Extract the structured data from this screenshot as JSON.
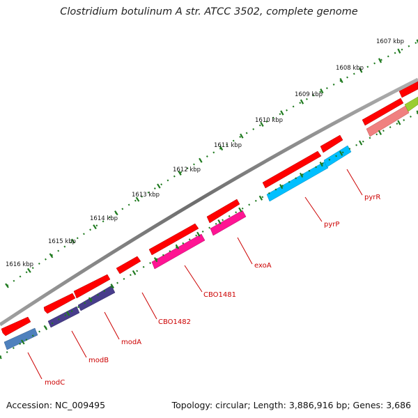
{
  "title": "Clostridium botulinum A str. ATCC 3502, complete genome",
  "footer": {
    "accession": "Accession: NC_009495",
    "summary": "Topology: circular; Length: 3,886,916 bp; Genes: 3,686"
  },
  "ticks": [
    {
      "label": "1607 kbp",
      "kbp": 1607
    },
    {
      "label": "1608 kbp",
      "kbp": 1608
    },
    {
      "label": "1609 kbp",
      "kbp": 1609
    },
    {
      "label": "1610 kbp",
      "kbp": 1610
    },
    {
      "label": "1611 kbp",
      "kbp": 1611
    },
    {
      "label": "1612 kbp",
      "kbp": 1612
    },
    {
      "label": "1613 kbp",
      "kbp": 1613
    },
    {
      "label": "1614 kbp",
      "kbp": 1614
    },
    {
      "label": "1615 kbp",
      "kbp": 1615
    },
    {
      "label": "1616 kbp",
      "kbp": 1616
    }
  ],
  "genes": [
    {
      "label": "modC",
      "color": "#4f81bd"
    },
    {
      "label": "modB",
      "color": "#483d8b"
    },
    {
      "label": "modA",
      "color": "#483d8b"
    },
    {
      "label": "CBO1482",
      "color": "#ff0000"
    },
    {
      "label": "CBO1481",
      "color": "#ff1493"
    },
    {
      "label": "exoA",
      "color": "#ff1493"
    },
    {
      "label": "pyrP",
      "color": "#00bfff"
    },
    {
      "label": "pyrR",
      "color": "#00bfff"
    }
  ],
  "colors": {
    "backbone": "#808080",
    "cds": "#ff0000",
    "tick": "#1f7a1f",
    "label": "#cc0000"
  }
}
